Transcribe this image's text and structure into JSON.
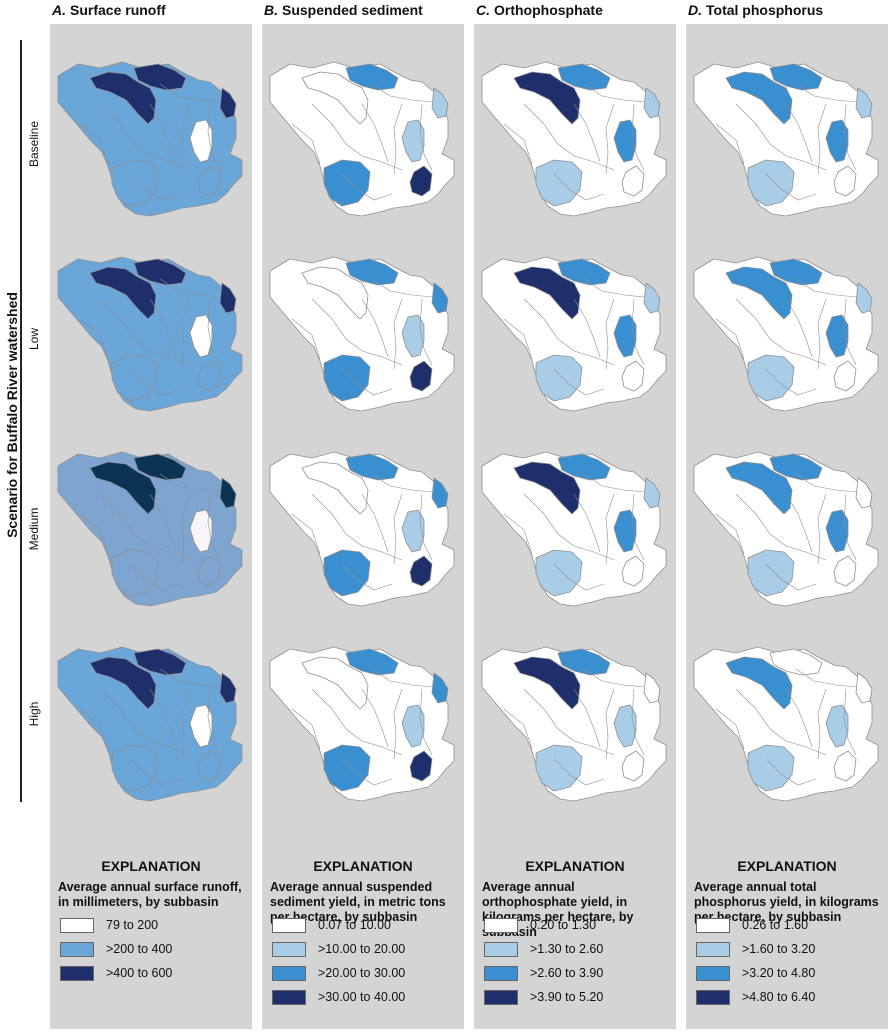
{
  "side_title": "Scenario for Buffalo River watershed",
  "rows": [
    "Baseline",
    "Low",
    "Medium",
    "High"
  ],
  "colors": {
    "white": "#ffffff",
    "light": "#a9cce7",
    "mid": "#6aa6d8",
    "blue": "#3a8fd0",
    "dark": "#1e2f6b",
    "darkest": "#0b3354",
    "pale": "#f8f4f8",
    "medium_mid": "#7ea4d0",
    "panel": "#d4d4d5",
    "border": "#8f8f92"
  },
  "columns": [
    {
      "letter": "A.",
      "title": "Surface runoff",
      "exp_head": "EXPLANATION",
      "exp_desc": "Average annual surface runoff, in millimeters, by subbasin",
      "legend": [
        {
          "label": "79 to 200",
          "color": "white"
        },
        {
          "label": ">200 to 400",
          "color": "mid"
        },
        {
          "label": ">400 to 600",
          "color": "dark"
        }
      ],
      "maps": [
        {
          "base": "mid",
          "nw": "dark",
          "ne": "dark",
          "east": "dark",
          "center": "white",
          "south": "mid",
          "notch": "mid"
        },
        {
          "base": "mid",
          "nw": "dark",
          "ne": "dark",
          "east": "dark",
          "center": "white",
          "south": "mid",
          "notch": "mid"
        },
        {
          "base": "medium_mid",
          "nw": "darkest",
          "ne": "darkest",
          "east": "darkest",
          "center": "pale",
          "south": "medium_mid",
          "notch": "medium_mid"
        },
        {
          "base": "mid",
          "nw": "dark",
          "ne": "dark",
          "east": "dark",
          "center": "white",
          "south": "mid",
          "notch": "mid"
        }
      ]
    },
    {
      "letter": "B.",
      "title": "Suspended sediment",
      "exp_head": "EXPLANATION",
      "exp_desc": "Average annual suspended sediment yield, in metric tons per hectare, by subbasin",
      "legend": [
        {
          "label": "0.07 to 10.00",
          "color": "white"
        },
        {
          "label": ">10.00 to 20.00",
          "color": "light"
        },
        {
          "label": ">20.00 to 30.00",
          "color": "blue"
        },
        {
          "label": ">30.00 to 40.00",
          "color": "dark"
        }
      ],
      "maps": [
        {
          "base": "white",
          "nw": "white",
          "ne": "blue",
          "east": "light",
          "center": "light",
          "south": "blue",
          "notch": "dark"
        },
        {
          "base": "white",
          "nw": "white",
          "ne": "blue",
          "east": "blue",
          "center": "light",
          "south": "blue",
          "notch": "dark"
        },
        {
          "base": "white",
          "nw": "white",
          "ne": "blue",
          "east": "blue",
          "center": "light",
          "south": "blue",
          "notch": "dark"
        },
        {
          "base": "white",
          "nw": "white",
          "ne": "blue",
          "east": "blue",
          "center": "light",
          "south": "blue",
          "notch": "dark"
        }
      ]
    },
    {
      "letter": "C.",
      "title": "Orthophosphate",
      "exp_head": "EXPLANATION",
      "exp_desc": "Average annual orthophosphate yield, in kilograms per hectare, by subbasin",
      "legend": [
        {
          "label": "0.20 to 1.30",
          "color": "white"
        },
        {
          "label": ">1.30 to 2.60",
          "color": "light"
        },
        {
          "label": ">2.60 to 3.90",
          "color": "blue"
        },
        {
          "label": ">3.90 to 5.20",
          "color": "dark"
        }
      ],
      "maps": [
        {
          "base": "white",
          "nw": "dark",
          "ne": "blue",
          "east": "light",
          "center": "blue",
          "south": "light",
          "notch": "white"
        },
        {
          "base": "white",
          "nw": "dark",
          "ne": "blue",
          "east": "light",
          "center": "blue",
          "south": "light",
          "notch": "white"
        },
        {
          "base": "white",
          "nw": "dark",
          "ne": "blue",
          "east": "light",
          "center": "blue",
          "south": "light",
          "notch": "white"
        },
        {
          "base": "white",
          "nw": "dark",
          "ne": "blue",
          "east": "white",
          "center": "light",
          "south": "light",
          "notch": "white"
        }
      ]
    },
    {
      "letter": "D.",
      "title": "Total phosphorus",
      "exp_head": "EXPLANATION",
      "exp_desc": "Average annual total phosphorus yield, in kilograms per hectare, by subbasin",
      "legend": [
        {
          "label": "0.26 to 1.60",
          "color": "white"
        },
        {
          "label": ">1.60 to 3.20",
          "color": "light"
        },
        {
          "label": ">3.20 to 4.80",
          "color": "blue"
        },
        {
          "label": ">4.80 to 6.40",
          "color": "dark"
        }
      ],
      "maps": [
        {
          "base": "white",
          "nw": "blue",
          "ne": "blue",
          "east": "light",
          "center": "blue",
          "south": "light",
          "notch": "white"
        },
        {
          "base": "white",
          "nw": "blue",
          "ne": "blue",
          "east": "light",
          "center": "blue",
          "south": "light",
          "notch": "white"
        },
        {
          "base": "white",
          "nw": "blue",
          "ne": "blue",
          "east": "white",
          "center": "blue",
          "south": "light",
          "notch": "white"
        },
        {
          "base": "white",
          "nw": "blue",
          "ne": "white",
          "east": "white",
          "center": "light",
          "south": "light",
          "notch": "white"
        }
      ]
    }
  ]
}
